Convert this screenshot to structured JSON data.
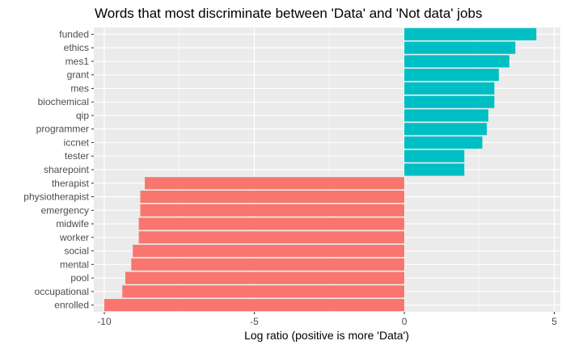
{
  "chart_data": {
    "type": "bar",
    "orientation": "horizontal",
    "title": "Words that most discriminate between 'Data' and 'Not data' jobs",
    "xlabel": "Log ratio (positive is more 'Data')",
    "ylabel": "",
    "xlim": [
      -10.35,
      5.2
    ],
    "xticks": [
      -10,
      -5,
      0,
      5
    ],
    "xtick_labels": [
      "-10",
      "-5",
      "0",
      "5"
    ],
    "grid": true,
    "legend": "none",
    "categories": [
      "funded",
      "ethics",
      "mes1",
      "grant",
      "mes",
      "biochemical",
      "qip",
      "programmer",
      "iccnet",
      "tester",
      "sharepoint",
      "therapist",
      "physiotherapist",
      "emergency",
      "midwife",
      "worker",
      "social",
      "mental",
      "pool",
      "occupational",
      "enrolled"
    ],
    "values": [
      4.4,
      3.7,
      3.5,
      3.15,
      3.0,
      3.0,
      2.8,
      2.75,
      2.6,
      2.0,
      2.0,
      -8.65,
      -8.8,
      -8.8,
      -8.85,
      -8.85,
      -9.05,
      -9.1,
      -9.3,
      -9.4,
      -10.0
    ],
    "colors": {
      "positive": "#00BFC4",
      "negative": "#F8766D",
      "panel": "#EBEBEB",
      "grid": "#FFFFFF"
    }
  }
}
